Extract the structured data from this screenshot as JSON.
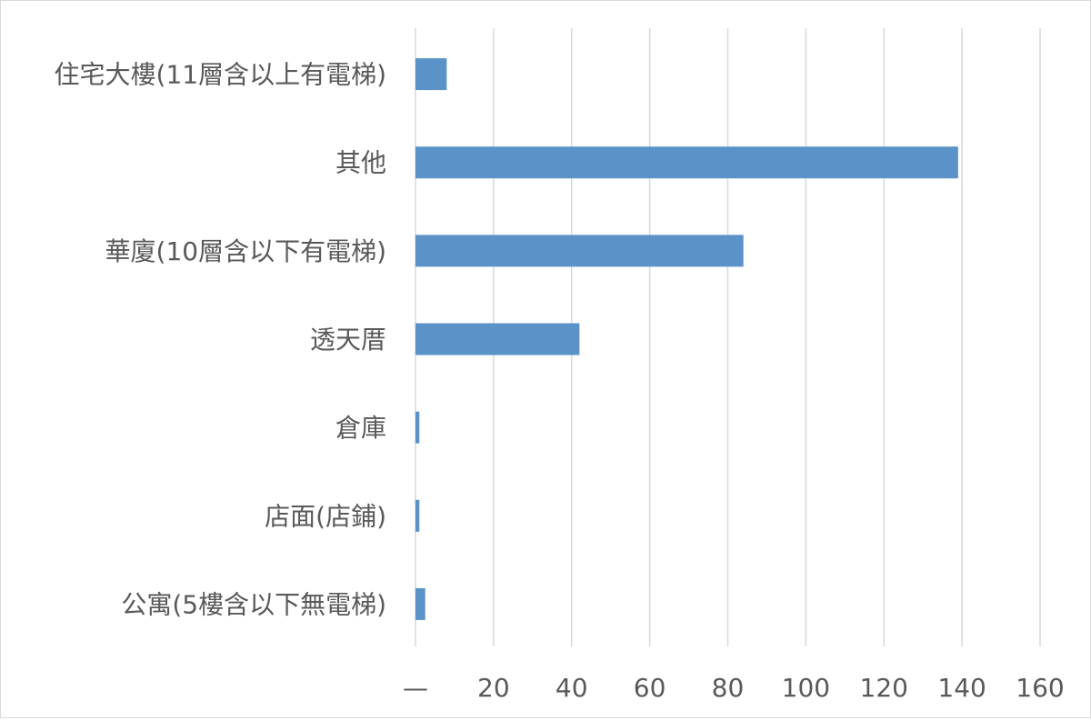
{
  "chart_data": {
    "type": "bar",
    "orientation": "horizontal",
    "categories": [
      "住宅大樓(11層含以上有電梯)",
      "其他",
      "華廈(10層含以下有電梯)",
      "透天厝",
      "倉庫",
      "店面(店鋪)",
      "公寓(5樓含以下無電梯)"
    ],
    "values": [
      8,
      139,
      84,
      42,
      1,
      1,
      2.5
    ],
    "x_tick_labels": [
      "—",
      "20",
      "40",
      "60",
      "80",
      "100",
      "120",
      "140",
      "160"
    ],
    "xlim": [
      0,
      160
    ],
    "grid": true,
    "colors": {
      "bar": "#5b93c8",
      "grid": "#d9d9d9",
      "text": "#595959"
    }
  }
}
